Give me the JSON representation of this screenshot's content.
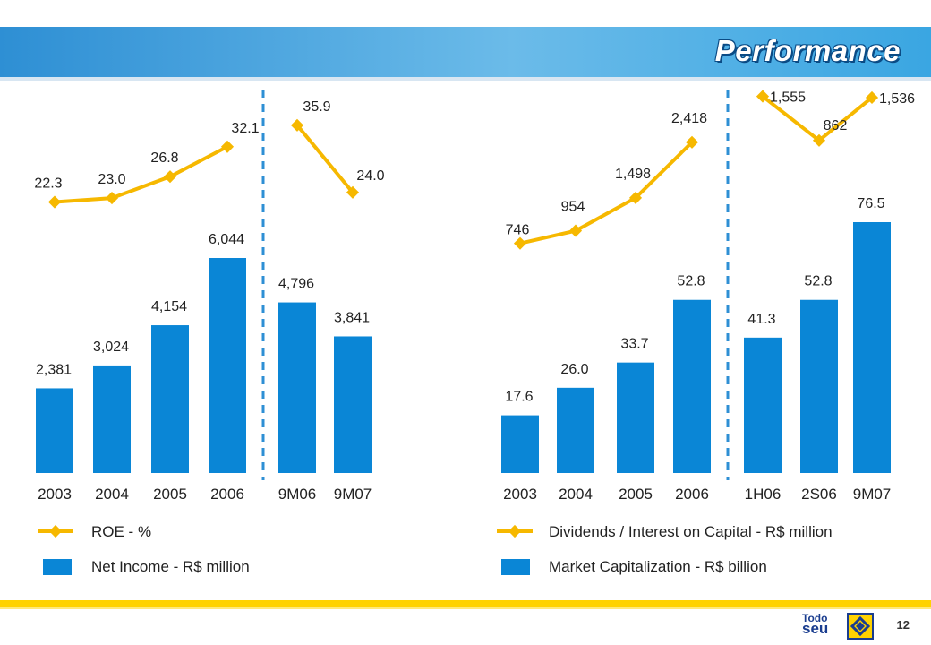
{
  "header": {
    "title": "Performance"
  },
  "legend": {
    "left_line": "ROE - %",
    "left_bar": "Net Income - R$ million",
    "right_line": "Dividends / Interest on Capital - R$ million",
    "right_bar": "Market Capitalization - R$ billion"
  },
  "footer": {
    "page_number": "12",
    "brand_top": "Todo",
    "brand_bottom": "seu"
  },
  "colors": {
    "bar": "#0a86d6",
    "line": "#f6b800",
    "banner": "#2e8fd4",
    "divider": "#2e8fd4"
  },
  "chart_data": [
    {
      "type": "bar",
      "categories": [
        "2003",
        "2004",
        "2005",
        "2006",
        "9M06",
        "9M07"
      ],
      "series": [
        {
          "name": "Net Income - R$ million",
          "values": [
            2381,
            3024,
            4154,
            6044,
            4796,
            3841
          ],
          "labels": [
            "2,381",
            "3,024",
            "4,154",
            "6,044",
            "4,796",
            "3,841"
          ]
        }
      ],
      "line_series": [
        {
          "name": "ROE - %",
          "categories": [
            "2003",
            "2004",
            "2005",
            "2006"
          ],
          "values": [
            22.3,
            23.0,
            26.8,
            32.1
          ],
          "labels": [
            "22.3",
            "23.0",
            "26.8",
            "32.1"
          ]
        },
        {
          "name": "ROE - %",
          "categories": [
            "9M06",
            "9M07"
          ],
          "values": [
            35.9,
            24.0
          ],
          "labels": [
            "35.9",
            "24.0"
          ]
        }
      ]
    },
    {
      "type": "bar",
      "categories": [
        "2003",
        "2004",
        "2005",
        "2006",
        "1H06",
        "2S06",
        "9M07"
      ],
      "series": [
        {
          "name": "Market Capitalization - R$ billion",
          "values": [
            17.6,
            26.0,
            33.7,
            52.8,
            41.3,
            52.8,
            76.5
          ],
          "labels": [
            "17.6",
            "26.0",
            "33.7",
            "52.8",
            "41.3",
            "52.8",
            "76.5"
          ]
        }
      ],
      "line_series": [
        {
          "name": "Dividends / Interest on Capital - R$ million",
          "categories": [
            "2003",
            "2004",
            "2005",
            "2006"
          ],
          "values": [
            746,
            954,
            1498,
            2418
          ],
          "labels": [
            "746",
            "954",
            "1,498",
            "2,418"
          ]
        },
        {
          "name": "Dividends / Interest on Capital - R$ million",
          "categories": [
            "1H06",
            "2S06",
            "9M07"
          ],
          "values": [
            1555,
            862,
            1536
          ],
          "labels": [
            "1,555",
            "862",
            "1,536"
          ]
        }
      ]
    }
  ]
}
